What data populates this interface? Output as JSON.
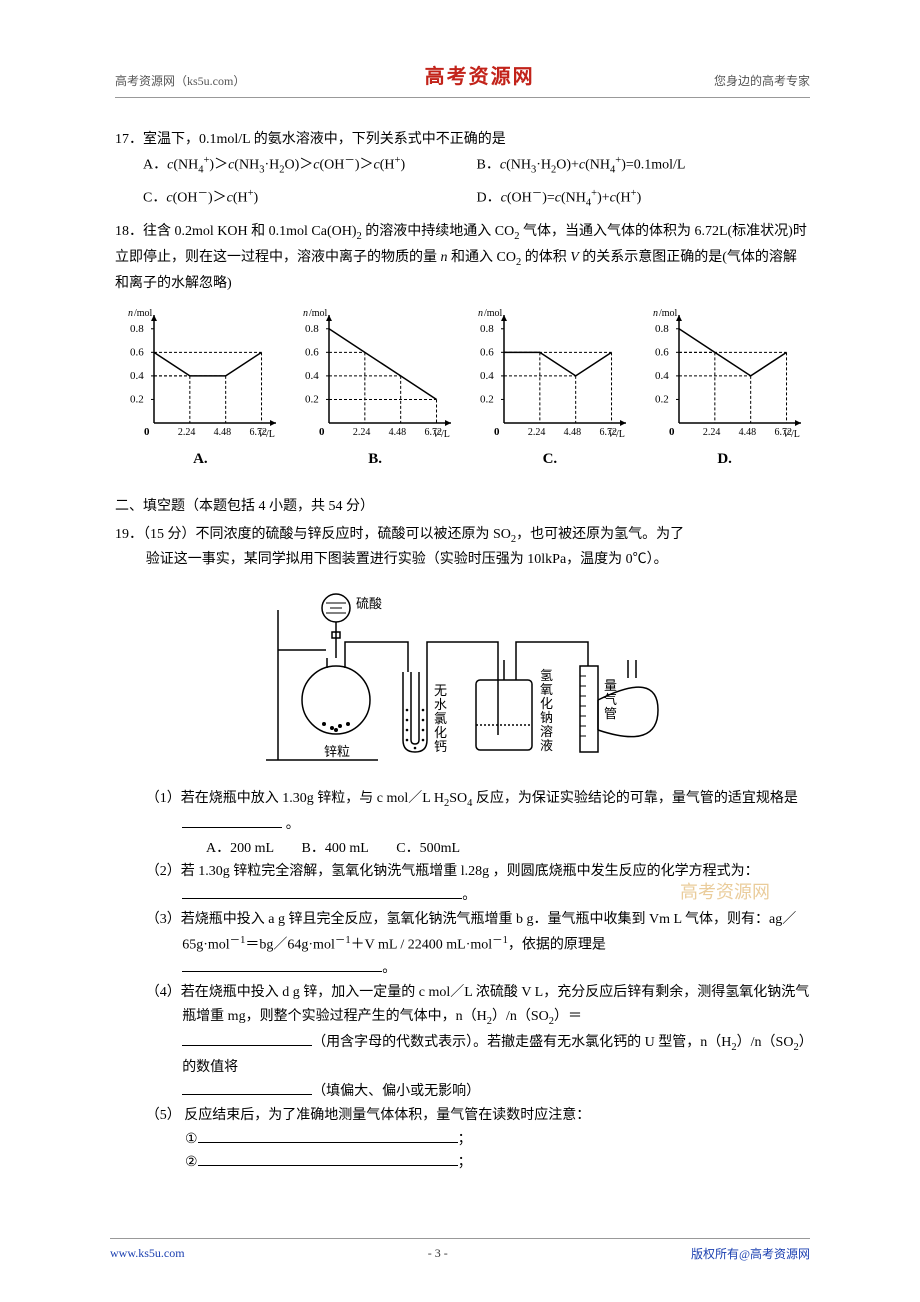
{
  "header": {
    "left": "高考资源网（ks5u.com）",
    "center": "高考资源网",
    "right": "您身边的高考专家"
  },
  "watermark": "高考资源网",
  "q17": {
    "num": "17．",
    "stem": "室温下，0.1mol/L 的氨水溶液中，下列关系式中不正确的是",
    "options": {
      "A": "A．c(NH₄⁺)＞c(NH₃·H₂O)＞c(OH⁻)＞c(H⁺)",
      "B": "B．c(NH₃·H₂O)+c(NH₄⁺)=0.1mol/L",
      "C": "C．c(OH⁻)＞c(H⁺)",
      "D": "D．c(OH⁻)=c(NH₄⁺)+c(H⁺)"
    }
  },
  "q18": {
    "num": "18．",
    "stem_line1": "往含 0.2mol KOH 和 0.1mol Ca(OH)₂ 的溶液中持续地通入 CO₂ 气体，当通入气体的体积为",
    "stem_line2": "6.72L(标准状况)时立即停止，则在这一过程中，溶液中离子的物质的量 n 和通入 CO₂ 的体积 V",
    "stem_line3": "的关系示意图正确的是(气体的溶解和离子的水解忽略)",
    "charts": {
      "ylabel": "n/mol",
      "xlabel": "V/L",
      "yticks": [
        0.2,
        0.4,
        0.6,
        0.8
      ],
      "xticks": [
        "2.24",
        "4.48",
        "6.72"
      ],
      "ylim": [
        0,
        0.9
      ],
      "xlim": [
        0,
        7.5
      ],
      "axis_color": "#000000",
      "dash_color": "#000000",
      "line_color": "#000000",
      "background": "#ffffff",
      "tick_fontsize": 9,
      "label_fontsize": 10,
      "line_width": 1.5,
      "series": {
        "A": [
          [
            0,
            0.6
          ],
          [
            2.24,
            0.4
          ],
          [
            4.48,
            0.4
          ],
          [
            6.72,
            0.6
          ]
        ],
        "B": [
          [
            0,
            0.8
          ],
          [
            2.24,
            0.6
          ],
          [
            4.48,
            0.4
          ],
          [
            6.72,
            0.2
          ]
        ],
        "C": [
          [
            0,
            0.6
          ],
          [
            2.24,
            0.6
          ],
          [
            4.48,
            0.4
          ],
          [
            6.72,
            0.6
          ]
        ],
        "D": [
          [
            0,
            0.8
          ],
          [
            2.24,
            0.6
          ],
          [
            4.48,
            0.4
          ],
          [
            6.72,
            0.6
          ]
        ]
      },
      "labels": {
        "A": "A.",
        "B": "B.",
        "C": "C.",
        "D": "D."
      }
    }
  },
  "section2": "二、填空题（本题包括 4 小题，共 54 分）",
  "q19": {
    "num": "19．",
    "points": "（15 分）",
    "stem_line1": "不同浓度的硫酸与锌反应时，硫酸可以被还原为 SO₂，也可被还原为氢气。为了",
    "stem_line2": "验证这一事实，某同学拟用下图装置进行实验（实验时压强为 10lkPa，温度为 0℃）。",
    "apparatus_labels": [
      "硫酸",
      "锌粒",
      "无水氯化钙",
      "氢氧化钠溶液",
      "量气管"
    ],
    "parts": {
      "p1": {
        "label": "（1）",
        "text": "若在烧瓶中放入 1.30g 锌粒，与 c mol／L H₂SO₄ 反应，为保证实验结论的可靠，量气管的适宜规格是",
        "after": " 。",
        "opts": "A．200 mL　　B．400 mL　　C．500mL"
      },
      "p2": {
        "label": "（2）",
        "text": "若 1.30g 锌粒完全溶解，氢氧化钠洗气瓶增重 l.28g ，则圆底烧瓶中发生反应的化学方程式为：",
        "after": "。"
      },
      "p3": {
        "label": "（3）",
        "text": "若烧瓶中投入 a g 锌且完全反应，氢氧化钠洗气瓶增重 b g．量气瓶中收集到 Vm L 气体，则有：ag／65g·mol⁻¹＝bg／64g·mol⁻¹＋V mL / 22400 mL·mol⁻¹，依据的原理是",
        "after": "。"
      },
      "p4": {
        "label": "（4）",
        "text_a": "若在烧瓶中投入 d g 锌，加入一定量的 c mol／L 浓硫酸 V L，充分反应后锌有剩余，测得氢氧化钠洗气瓶增重 mg，则整个实验过程产生的气体中，n（H₂）/n（SO₂）＝",
        "after_a": "（用含字母的代数式表示）。若撤走盛有无水氯化钙的 U 型管，n（H₂）/n（SO₂）的数值将",
        "after_b": "（填偏大、偏小或无影响）"
      },
      "p5": {
        "label": "（5）",
        "text": " 反应结束后，为了准确地测量气体体积，量气管在读数时应注意：",
        "item1": "①",
        "item2": "②",
        "semi": "；"
      }
    }
  },
  "footer": {
    "left": "www.ks5u.com",
    "center": "- 3 -",
    "right": "版权所有@高考资源网"
  }
}
